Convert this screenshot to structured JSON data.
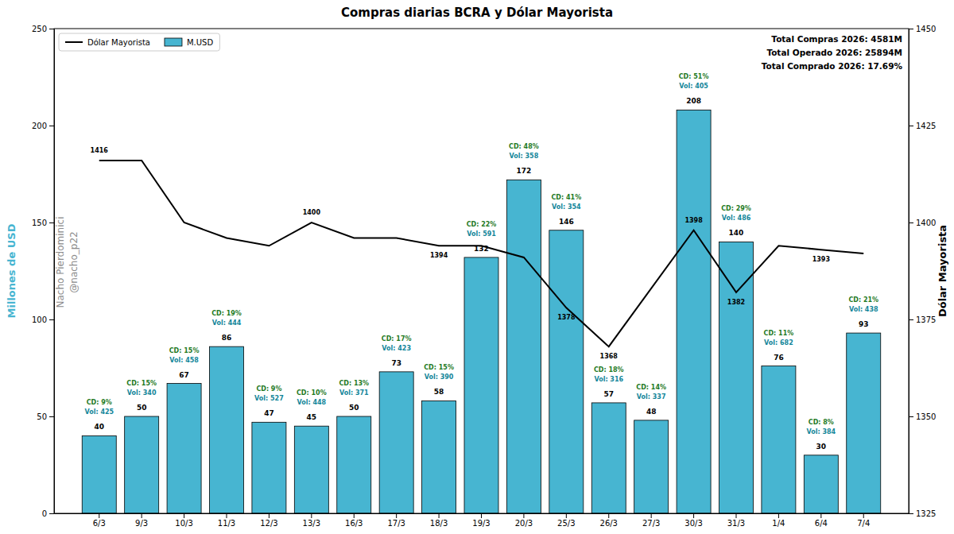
{
  "chart_data": {
    "type": "bar",
    "title": "Compras diarias BCRA y Dólar Mayorista",
    "y_label": "Millones de USD",
    "y2_label": "Dólar Mayorista",
    "categories": [
      "6/3",
      "9/3",
      "10/3",
      "11/3",
      "12/3",
      "13/3",
      "16/3",
      "17/3",
      "18/3",
      "19/3",
      "20/3",
      "25/3",
      "26/3",
      "27/3",
      "30/3",
      "31/3",
      "1/4",
      "6/4",
      "7/4"
    ],
    "series": [
      {
        "name": "Dólar Mayorista",
        "type": "line",
        "axis": "y2",
        "color": "#000000",
        "values": [
          1416,
          1416,
          1400,
          1396,
          1394,
          1400,
          1396,
          1396,
          1394,
          1394,
          1391,
          1378,
          1368,
          1383,
          1398,
          1382,
          1394,
          1393,
          1392
        ],
        "value_labels": [
          "1416",
          null,
          null,
          null,
          null,
          "1400",
          null,
          null,
          "1394",
          null,
          null,
          "1378",
          "1368",
          null,
          "1398",
          "1382",
          null,
          "1393",
          null
        ]
      },
      {
        "name": "M.USD",
        "type": "bar",
        "color": "#47b5d1",
        "data_labels": true,
        "values": [
          40,
          50,
          67,
          86,
          47,
          45,
          50,
          73,
          58,
          132,
          172,
          146,
          57,
          48,
          208,
          140,
          76,
          30,
          93
        ]
      }
    ],
    "cd_labels": [
      "CD: 9%",
      "CD: 15%",
      "CD: 15%",
      "CD: 19%",
      "CD: 9%",
      "CD: 10%",
      "CD: 13%",
      "CD: 17%",
      "CD: 15%",
      "CD: 22%",
      "CD: 48%",
      "CD: 41%",
      "CD: 18%",
      "CD: 14%",
      "CD: 51%",
      "CD: 29%",
      "CD: 11%",
      "CD: 8%",
      "CD: 21%"
    ],
    "vol_labels": [
      "Vol: 425",
      "Vol: 340",
      "Vol: 458",
      "Vol: 444",
      "Vol: 527",
      "Vol: 448",
      "Vol: 371",
      "Vol: 423",
      "Vol: 390",
      "Vol: 591",
      "Vol: 358",
      "Vol: 354",
      "Vol: 316",
      "Vol: 337",
      "Vol: 405",
      "Vol: 486",
      "Vol: 682",
      "Vol: 384",
      "Vol: 438"
    ],
    "stats": [
      "Total Compras 2026: 4581M",
      "Total Operado 2026: 25894M",
      "Total Comprado 2026: 17.69%"
    ],
    "credit": [
      "Nacho Pierdominici",
      "@nacho_p22"
    ],
    "ylim": [
      0,
      250
    ],
    "yticks": [
      0,
      50,
      100,
      150,
      200,
      250
    ],
    "y2lim": [
      1325,
      1450
    ],
    "y2ticks": [
      1325,
      1350,
      1375,
      1400,
      1425,
      1450
    ],
    "legend": "upper left",
    "grid": false
  }
}
